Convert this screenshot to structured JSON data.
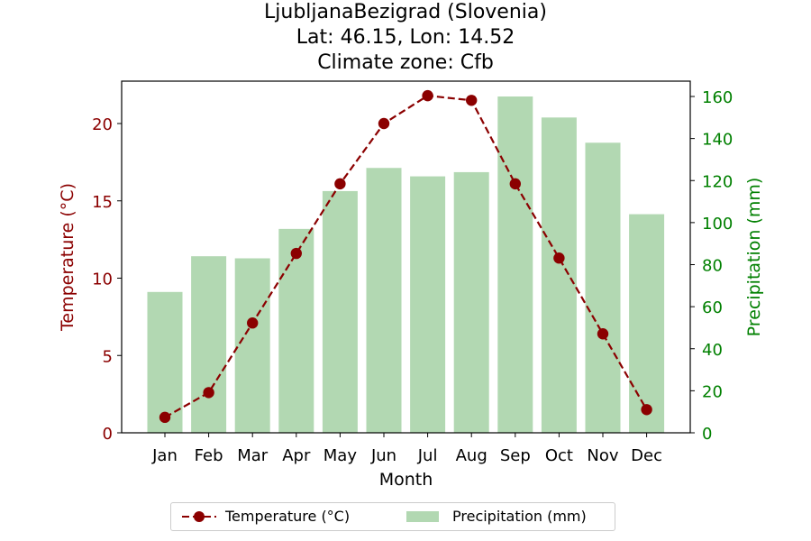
{
  "title_lines": [
    "LjubljanaBezigrad (Slovenia)",
    "Lat: 46.15, Lon: 14.52",
    "Climate zone: Cfb"
  ],
  "chart_data": {
    "type": "bar",
    "title": "LjubljanaBezigrad (Slovenia)\nLat: 46.15, Lon: 14.52\nClimate zone: Cfb",
    "categories": [
      "Jan",
      "Feb",
      "Mar",
      "Apr",
      "May",
      "Jun",
      "Jul",
      "Aug",
      "Sep",
      "Oct",
      "Nov",
      "Dec"
    ],
    "xlabel": "Month",
    "series": [
      {
        "name": "Temperature (°C)",
        "type": "line",
        "axis": "left",
        "color": "#8b0000",
        "values": [
          1.0,
          2.6,
          7.1,
          11.6,
          16.1,
          20.0,
          21.8,
          21.5,
          16.1,
          11.3,
          6.4,
          1.5
        ]
      },
      {
        "name": "Precipitation (mm)",
        "type": "bar",
        "axis": "right",
        "color": "#b2d8b2",
        "values": [
          67,
          84,
          83,
          97,
          115,
          126,
          122,
          124,
          160,
          150,
          138,
          104
        ]
      }
    ],
    "y_left": {
      "label": "Temperature (°C)",
      "ticks": [
        0,
        5,
        10,
        15,
        20
      ],
      "color": "#8b0000"
    },
    "y_right": {
      "label": "Precipitation (mm)",
      "ticks": [
        0,
        20,
        40,
        60,
        80,
        100,
        120,
        140,
        160
      ],
      "color": "#008000"
    },
    "legend": {
      "placement": "bottom-center",
      "entries": [
        "Temperature (°C)",
        "Precipitation (mm)"
      ]
    },
    "grid": false
  }
}
